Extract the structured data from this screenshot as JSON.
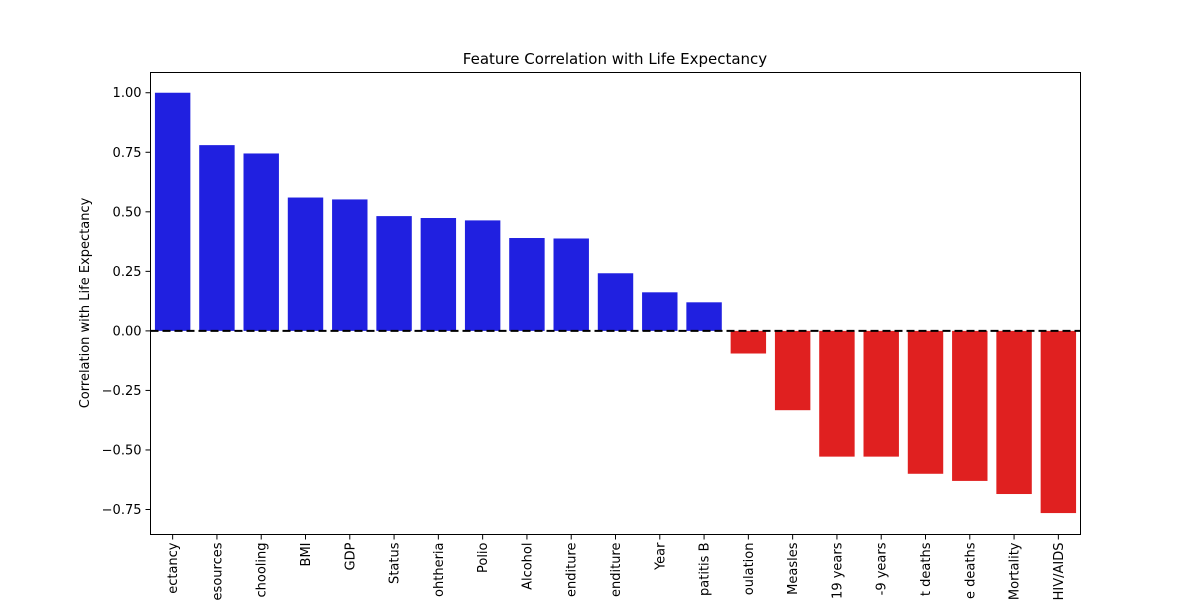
{
  "chart_data": {
    "type": "bar",
    "title": "Feature Correlation with Life Expectancy",
    "xlabel": "",
    "ylabel": "Correlation with Life Expectancy",
    "categories": [
      "ectancy",
      "esources",
      "chooling",
      "BMI",
      "GDP",
      "Status",
      "ohtheria",
      "Polio",
      "Alcohol",
      "enditure",
      "enditure",
      "Year",
      "patitis B",
      "oulation",
      "Measles",
      "19 years",
      "-9 years",
      "t deaths",
      "e deaths",
      "Mortality",
      "HIV/AIDS"
    ],
    "values": [
      1.0,
      0.78,
      0.745,
      0.56,
      0.552,
      0.482,
      0.474,
      0.464,
      0.39,
      0.388,
      0.242,
      0.162,
      0.12,
      -0.095,
      -0.333,
      -0.528,
      -0.528,
      -0.6,
      -0.63,
      -0.685,
      -0.765
    ],
    "ylim": [
      -0.855,
      1.085
    ],
    "yticks": [
      -0.75,
      -0.5,
      -0.25,
      0.0,
      0.25,
      0.5,
      0.75,
      1.0
    ],
    "ytick_labels": [
      "−0.75",
      "−0.50",
      "−0.25",
      "0.00",
      "0.25",
      "0.50",
      "0.75",
      "1.00"
    ],
    "reference_line": 0,
    "colors": {
      "positive": "#2020e0",
      "negative": "#e02020",
      "reference_line": "#000000"
    },
    "grid": false,
    "legend": "none"
  }
}
